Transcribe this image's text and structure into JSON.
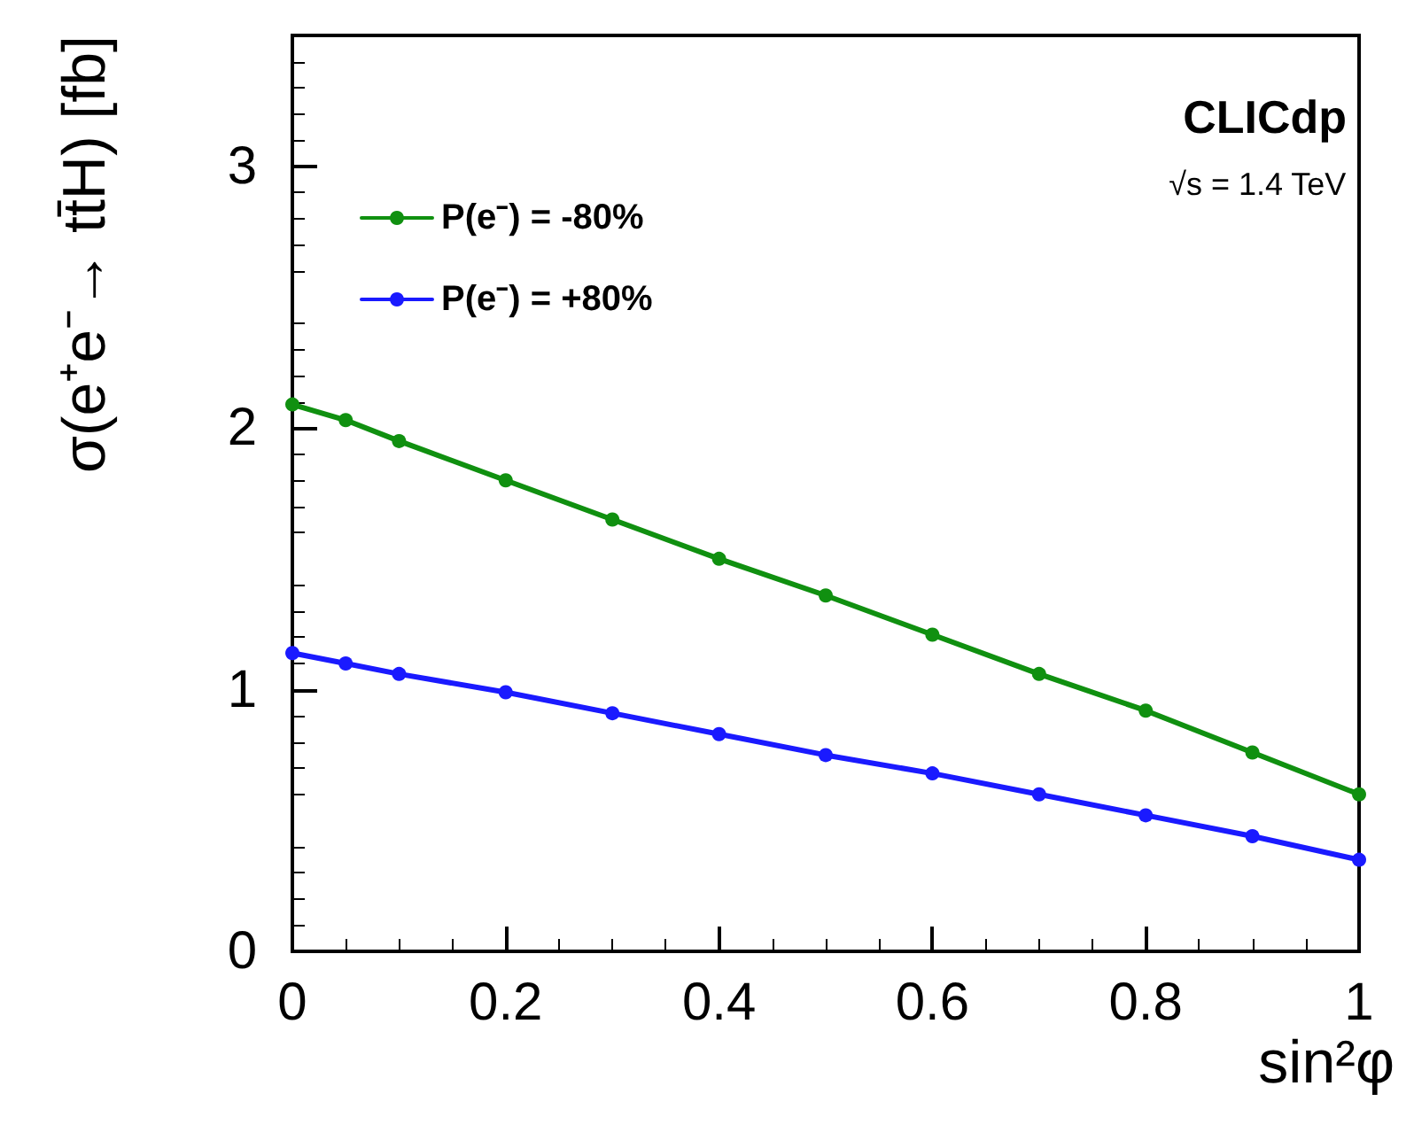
{
  "chart_data": {
    "type": "line",
    "xlabel": "sin²φ",
    "ylabel": "σ(e⁺e⁻→ tt̄H) [fb]",
    "annotations": [
      "CLICdp",
      "√s = 1.4 TeV"
    ],
    "x": [
      0,
      0.05,
      0.1,
      0.2,
      0.3,
      0.4,
      0.5,
      0.6,
      0.7,
      0.8,
      0.9,
      1
    ],
    "series": [
      {
        "name": "P(e⁻) = -80%",
        "color": "#109010",
        "values": [
          2.09,
          2.03,
          1.95,
          1.8,
          1.65,
          1.5,
          1.36,
          1.21,
          1.06,
          0.92,
          0.76,
          0.6
        ]
      },
      {
        "name": "P(e⁻) = +80%",
        "color": "#1a1aff",
        "values": [
          1.14,
          1.1,
          1.06,
          0.99,
          0.91,
          0.83,
          0.75,
          0.68,
          0.6,
          0.52,
          0.44,
          0.35
        ]
      }
    ],
    "xlim": [
      0,
      1
    ],
    "xticks": [
      0,
      0.2,
      0.4,
      0.6,
      0.8,
      1
    ],
    "ylim": [
      0,
      3.5
    ],
    "yticks": [
      0,
      1,
      2,
      3
    ],
    "grid": false,
    "legend": "top left",
    "marker": "circle",
    "line_style": "solid"
  }
}
